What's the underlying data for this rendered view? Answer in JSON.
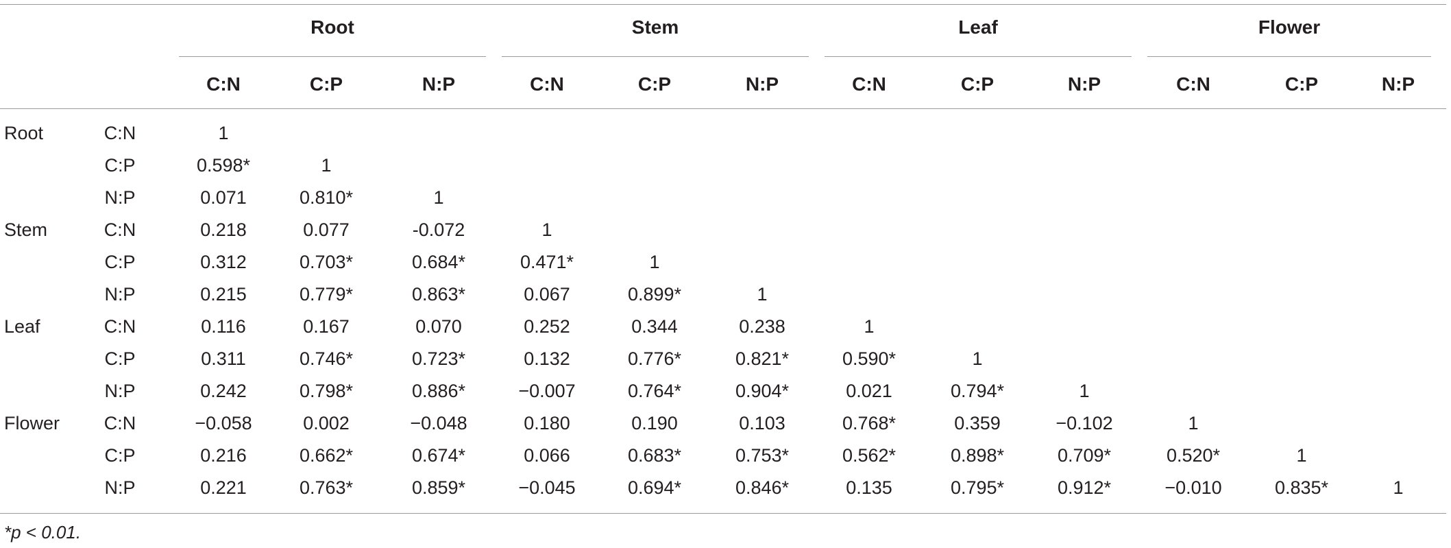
{
  "table": {
    "groups": [
      "Root",
      "Stem",
      "Leaf",
      "Flower"
    ],
    "ratios": [
      "C:N",
      "C:P",
      "N:P"
    ],
    "rows": [
      {
        "organ": "Root",
        "ratio": "C:N",
        "values": [
          "1"
        ]
      },
      {
        "organ": "",
        "ratio": "C:P",
        "values": [
          "0.598*",
          "1"
        ]
      },
      {
        "organ": "",
        "ratio": "N:P",
        "values": [
          "0.071",
          "0.810*",
          "1"
        ]
      },
      {
        "organ": "Stem",
        "ratio": "C:N",
        "values": [
          "0.218",
          "0.077",
          "-0.072",
          "1"
        ]
      },
      {
        "organ": "",
        "ratio": "C:P",
        "values": [
          "0.312",
          "0.703*",
          "0.684*",
          "0.471*",
          "1"
        ]
      },
      {
        "organ": "",
        "ratio": "N:P",
        "values": [
          "0.215",
          "0.779*",
          "0.863*",
          "0.067",
          "0.899*",
          "1"
        ]
      },
      {
        "organ": "Leaf",
        "ratio": "C:N",
        "values": [
          "0.116",
          "0.167",
          "0.070",
          "0.252",
          "0.344",
          "0.238",
          "1"
        ]
      },
      {
        "organ": "",
        "ratio": "C:P",
        "values": [
          "0.311",
          "0.746*",
          "0.723*",
          "0.132",
          "0.776*",
          "0.821*",
          "0.590*",
          "1"
        ]
      },
      {
        "organ": "",
        "ratio": "N:P",
        "values": [
          "0.242",
          "0.798*",
          "0.886*",
          "−0.007",
          "0.764*",
          "0.904*",
          "0.021",
          "0.794*",
          "1"
        ]
      },
      {
        "organ": "Flower",
        "ratio": "C:N",
        "values": [
          "−0.058",
          "0.002",
          "−0.048",
          "0.180",
          "0.190",
          "0.103",
          "0.768*",
          "0.359",
          "−0.102",
          "1"
        ]
      },
      {
        "organ": "",
        "ratio": "C:P",
        "values": [
          "0.216",
          "0.662*",
          "0.674*",
          "0.066",
          "0.683*",
          "0.753*",
          "0.562*",
          "0.898*",
          "0.709*",
          "0.520*",
          "1"
        ]
      },
      {
        "organ": "",
        "ratio": "N:P",
        "values": [
          "0.221",
          "0.763*",
          "0.859*",
          "−0.045",
          "0.694*",
          "0.846*",
          "0.135",
          "0.795*",
          "0.912*",
          "−0.010",
          "0.835*",
          "1"
        ]
      }
    ],
    "footnote": "*p < 0.01."
  }
}
